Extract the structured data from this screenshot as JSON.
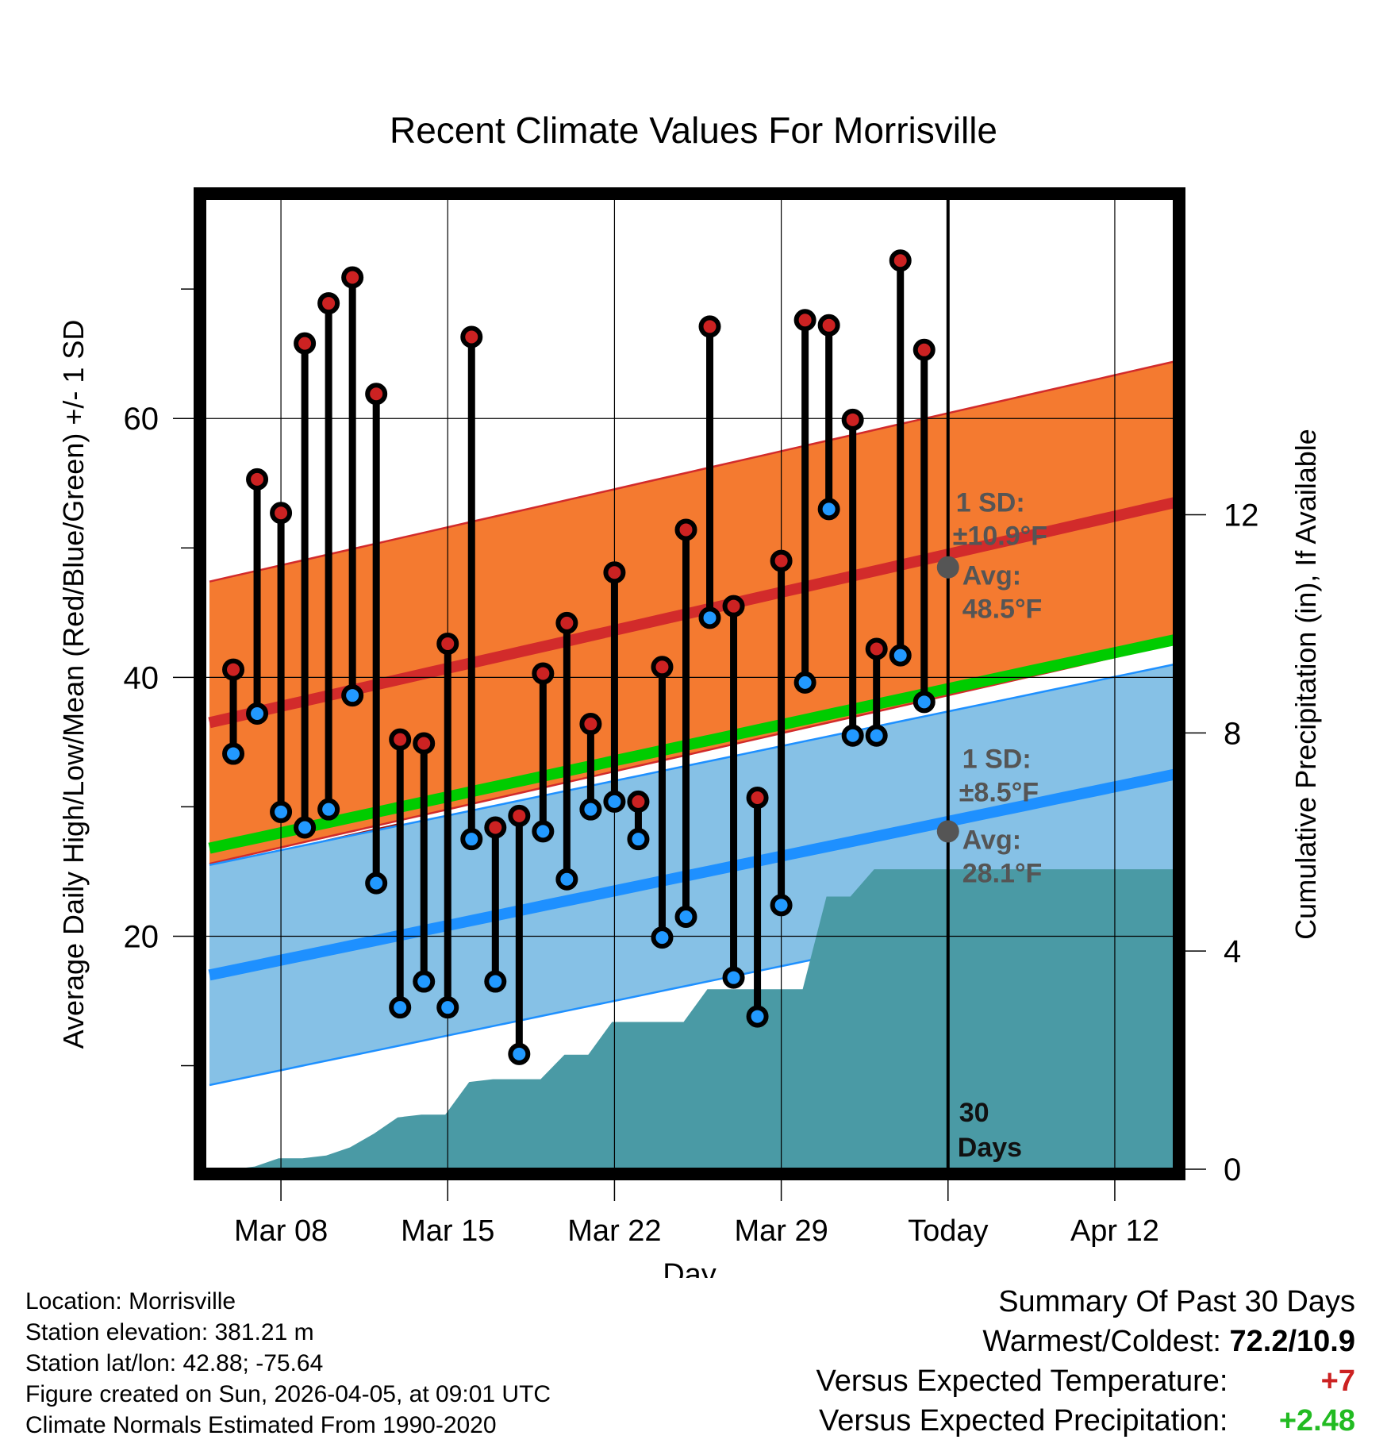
{
  "title": "Recent Climate Values For Morrisville",
  "colors": {
    "high_band": "#f47a30",
    "high_line": "#d22b2b",
    "low_band": "#86c1e6",
    "low_line": "#1e90ff",
    "mean_line": "#00cc00",
    "precip": "#4a9aa5",
    "high_dot": "#cc2222",
    "low_dot": "#2299ff",
    "today_dot": "#555555",
    "annotation": "#555555",
    "positive": "#cc2222",
    "precip_positive": "#22bb22"
  },
  "chart_data": {
    "type": "line",
    "title": "Recent Climate Values For Morrisville",
    "xlabel": "Day",
    "ylabel": "Average Daily High/Low/Mean (Red/Blue/Green) +/- 1 SD",
    "y2label": "Cumulative Precipitation (in), If Available",
    "x_ticks": [
      {
        "day": 8,
        "label": "Mar 08"
      },
      {
        "day": 15,
        "label": "Mar 15"
      },
      {
        "day": 22,
        "label": "Mar 22"
      },
      {
        "day": 29,
        "label": "Mar 29"
      },
      {
        "day": 36,
        "label": "Today"
      },
      {
        "day": 43,
        "label": "Apr 12"
      }
    ],
    "xlim": [
      4.8,
      45.5
    ],
    "ylim": [
      2,
      77
    ],
    "y_ticks_major": [
      20,
      40,
      60
    ],
    "y_ticks_minor": [
      10,
      30,
      50,
      70
    ],
    "y2lim": [
      0,
      17.8
    ],
    "y2_ticks": [
      0,
      4,
      8,
      12
    ],
    "today_day": 36,
    "normals": {
      "days": [
        5,
        45.5
      ],
      "high_avg": [
        36.5,
        53.5
      ],
      "high_sd": 10.9,
      "low_avg": [
        17,
        32.5
      ],
      "low_sd": 8.5,
      "mean_avg": [
        26.8,
        42.9
      ]
    },
    "annotations": {
      "high_sd_label": "1 SD:",
      "high_sd_value": "±10.9°F",
      "high_avg_label": "Avg:",
      "high_avg_value": "48.5°F",
      "low_sd_label": "1 SD:",
      "low_sd_value": "±8.5°F",
      "low_avg_label": "Avg:",
      "low_avg_value": "28.1°F",
      "days_number": "30",
      "days_word": "Days",
      "today_high_avg": 48.5,
      "today_low_avg": 28.1
    },
    "observations": [
      {
        "day": 6,
        "high": 40.6,
        "low": 34.1
      },
      {
        "day": 7,
        "high": 55.3,
        "low": 37.2
      },
      {
        "day": 8,
        "high": 52.7,
        "low": 29.6
      },
      {
        "day": 9,
        "high": 65.8,
        "low": 28.4
      },
      {
        "day": 10,
        "high": 68.9,
        "low": 29.8
      },
      {
        "day": 11,
        "high": 70.9,
        "low": 38.6
      },
      {
        "day": 12,
        "high": 61.9,
        "low": 24.1
      },
      {
        "day": 13,
        "high": 35.2,
        "low": 14.5
      },
      {
        "day": 14,
        "high": 34.9,
        "low": 16.5
      },
      {
        "day": 15,
        "high": 42.6,
        "low": 14.5
      },
      {
        "day": 16,
        "high": 66.3,
        "low": 27.5
      },
      {
        "day": 17,
        "high": 28.4,
        "low": 16.5
      },
      {
        "day": 18,
        "high": 29.3,
        "low": 10.9
      },
      {
        "day": 19,
        "high": 40.3,
        "low": 28.1
      },
      {
        "day": 20,
        "high": 44.2,
        "low": 24.4
      },
      {
        "day": 21,
        "high": 36.4,
        "low": 29.8
      },
      {
        "day": 22,
        "high": 48.1,
        "low": 30.4
      },
      {
        "day": 23,
        "high": 30.4,
        "low": 27.5
      },
      {
        "day": 24,
        "high": 40.8,
        "low": 19.9
      },
      {
        "day": 25,
        "high": 51.4,
        "low": 21.5
      },
      {
        "day": 26,
        "high": 67.1,
        "low": 44.6
      },
      {
        "day": 27,
        "high": 45.5,
        "low": 16.8
      },
      {
        "day": 28,
        "high": 30.7,
        "low": 13.8
      },
      {
        "day": 29,
        "high": 49.0,
        "low": 22.4
      },
      {
        "day": 30,
        "high": 67.6,
        "low": 39.6
      },
      {
        "day": 31,
        "high": 67.2,
        "low": 53.0
      },
      {
        "day": 32,
        "high": 59.9,
        "low": 35.5
      },
      {
        "day": 33,
        "high": 42.2,
        "low": 35.5
      },
      {
        "day": 34,
        "high": 72.2,
        "low": 41.7
      },
      {
        "day": 35,
        "high": 65.3,
        "low": 38.1
      }
    ],
    "precipitation": {
      "days": [
        5,
        6,
        6.9,
        7.9,
        8.9,
        9.9,
        10.9,
        11.9,
        12.9,
        13.9,
        14.9,
        15.9,
        16.9,
        17.9,
        18.9,
        19.9,
        20.9,
        21.9,
        22.9,
        23.9,
        24.9,
        25.9,
        26.9,
        27.9,
        28.9,
        29.9,
        30.9,
        31.9,
        32.9,
        33.9,
        34.9,
        35.9,
        45.5
      ],
      "values": [
        0,
        0,
        0.05,
        0.2,
        0.2,
        0.25,
        0.4,
        0.65,
        0.95,
        1.0,
        1.0,
        1.6,
        1.65,
        1.65,
        1.65,
        2.1,
        2.1,
        2.7,
        2.7,
        2.7,
        2.7,
        3.3,
        3.3,
        3.3,
        3.3,
        3.3,
        5.0,
        5.0,
        5.5,
        5.5,
        5.5,
        5.5,
        5.5
      ]
    }
  },
  "info": {
    "location": "Location: Morrisville",
    "elevation": "Station elevation: 381.21 m",
    "latlon": "Station lat/lon: 42.88; -75.64",
    "created": "Figure created on Sun, 2026-04-05, at 09:01 UTC",
    "normals": "Climate Normals Estimated From 1990-2020"
  },
  "summary": {
    "heading": "Summary Of Past 30 Days",
    "warmest_label": "Warmest/Coldest:",
    "warmest_value": "72.2/10.9",
    "temp_label": "Versus Expected Temperature:",
    "temp_value": "+7",
    "precip_label": "Versus Expected Precipitation:",
    "precip_value": "+2.48"
  }
}
